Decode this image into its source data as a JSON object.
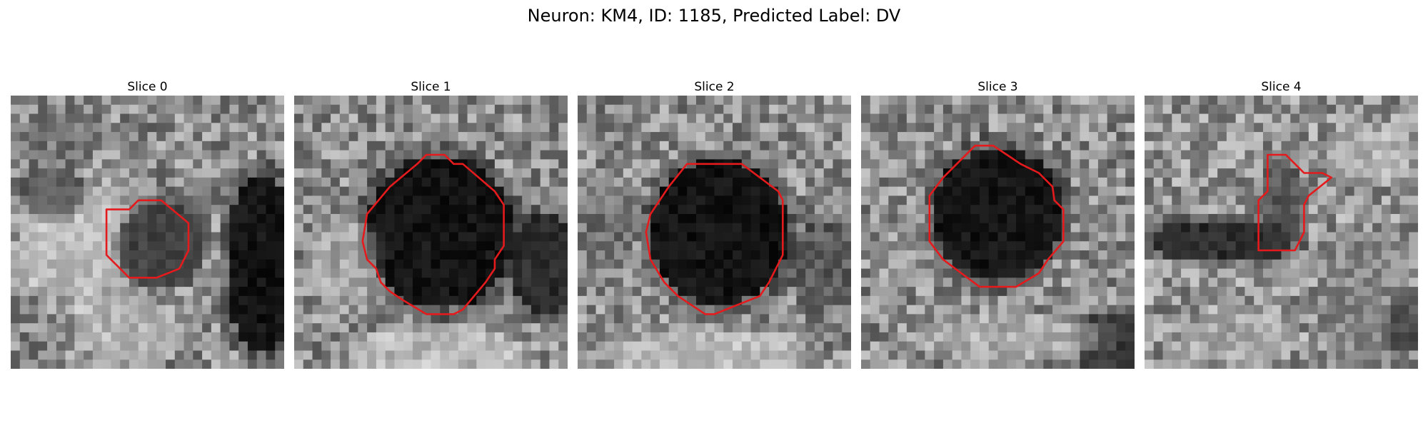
{
  "figure": {
    "title": "Neuron: KM4, ID: 1185, Predicted Label: DV"
  },
  "panels": [
    {
      "title": "Slice 0",
      "image": "noisy grayscale microscopy patch, 30x30 pixels",
      "contour_color": "#e41a1c"
    },
    {
      "title": "Slice 1",
      "image": "noisy grayscale microscopy patch, 30x30 pixels",
      "contour_color": "#e41a1c"
    },
    {
      "title": "Slice 2",
      "image": "noisy grayscale microscopy patch, 30x30 pixels",
      "contour_color": "#e41a1c"
    },
    {
      "title": "Slice 3",
      "image": "noisy grayscale microscopy patch, 30x30 pixels",
      "contour_color": "#e41a1c"
    },
    {
      "title": "Slice 4",
      "image": "noisy grayscale microscopy patch, 30x30 pixels",
      "contour_color": "#e41a1c"
    }
  ]
}
